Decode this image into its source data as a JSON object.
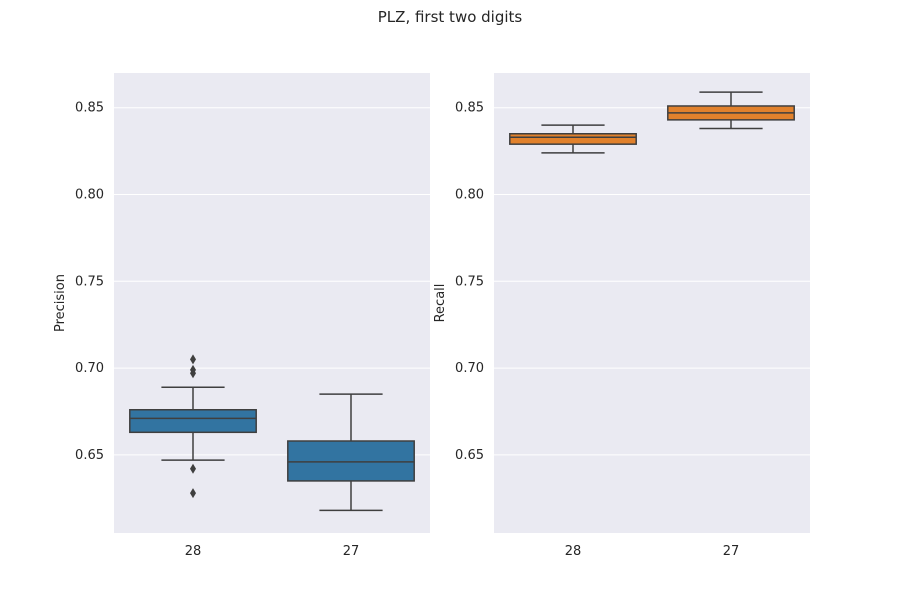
{
  "figure": {
    "title": "PLZ, first two digits"
  },
  "chart_data": [
    {
      "type": "box",
      "ylabel": "Precision",
      "xlabel": "",
      "categories": [
        "28",
        "27"
      ],
      "ylim": [
        0.605,
        0.87
      ],
      "yticks": [
        "0.65",
        "0.70",
        "0.75",
        "0.80",
        "0.85"
      ],
      "grid": true,
      "color": "#3274a1",
      "boxes": [
        {
          "category": "28",
          "whisker_low": 0.647,
          "q1": 0.663,
          "median": 0.671,
          "q3": 0.676,
          "whisker_high": 0.689,
          "outliers": [
            0.705,
            0.699,
            0.697,
            0.642,
            0.628
          ]
        },
        {
          "category": "27",
          "whisker_low": 0.618,
          "q1": 0.635,
          "median": 0.646,
          "q3": 0.658,
          "whisker_high": 0.685,
          "outliers": []
        }
      ]
    },
    {
      "type": "box",
      "ylabel": "Recall",
      "xlabel": "",
      "categories": [
        "28",
        "27"
      ],
      "ylim": [
        0.605,
        0.87
      ],
      "yticks": [
        "0.65",
        "0.70",
        "0.75",
        "0.80",
        "0.85"
      ],
      "grid": true,
      "color": "#e1812c",
      "boxes": [
        {
          "category": "28",
          "whisker_low": 0.824,
          "q1": 0.829,
          "median": 0.833,
          "q3": 0.835,
          "whisker_high": 0.84,
          "outliers": []
        },
        {
          "category": "27",
          "whisker_low": 0.838,
          "q1": 0.843,
          "median": 0.847,
          "q3": 0.851,
          "whisker_high": 0.859,
          "outliers": []
        }
      ]
    }
  ]
}
